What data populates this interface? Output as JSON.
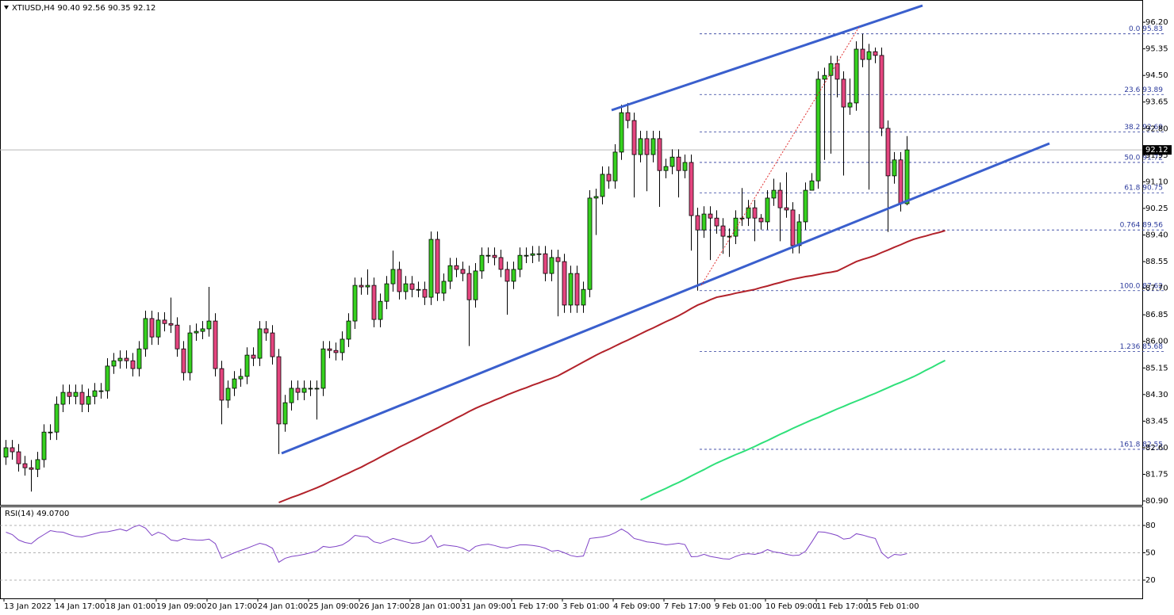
{
  "chart_data": {
    "type": "candlestick",
    "title": "XTIUSD,H4  90.40 92.56 90.35 92.12",
    "bull_color": "#36d11f",
    "bear_color": "#e4457f",
    "wick_color": "#000000",
    "categories": [
      "13 Jan 2022",
      null,
      null,
      null,
      null,
      null,
      null,
      null,
      "14 Jan 17:00",
      null,
      null,
      null,
      null,
      null,
      null,
      null,
      "18 Jan 01:00",
      null,
      null,
      null,
      null,
      null,
      null,
      null,
      "19 Jan 09:00",
      null,
      null,
      null,
      null,
      null,
      null,
      null,
      "20 Jan 17:00",
      null,
      null,
      null,
      null,
      null,
      null,
      null,
      "24 Jan 01:00",
      null,
      null,
      null,
      null,
      null,
      null,
      null,
      "25 Jan 09:00",
      null,
      null,
      null,
      null,
      null,
      null,
      null,
      "26 Jan 17:00",
      null,
      null,
      null,
      null,
      null,
      null,
      null,
      "28 Jan 01:00",
      null,
      null,
      null,
      null,
      null,
      null,
      null,
      "31 Jan 09:00",
      null,
      null,
      null,
      null,
      null,
      null,
      null,
      "1 Feb 17:00",
      null,
      null,
      null,
      null,
      null,
      null,
      null,
      "3 Feb 01:00",
      null,
      null,
      null,
      null,
      null,
      null,
      null,
      "4 Feb 09:00",
      null,
      null,
      null,
      null,
      null,
      null,
      null,
      "7 Feb 17:00",
      null,
      null,
      null,
      null,
      null,
      null,
      null,
      "9 Feb 01:00",
      null,
      null,
      null,
      null,
      null,
      null,
      null,
      "10 Feb 09:00",
      null,
      null,
      null,
      null,
      null,
      null,
      null,
      "11 Feb 17:00",
      null,
      null,
      null,
      null,
      null,
      null,
      null,
      "15 Feb 01:00",
      null,
      null,
      null,
      null,
      null,
      null,
      null,
      null,
      null,
      null,
      null,
      null
    ],
    "open": [
      82.3,
      82.6,
      82.47,
      82.09,
      81.96,
      81.91,
      82.22,
      83.1,
      83.1,
      83.99,
      84.37,
      84.24,
      84.37,
      83.99,
      84.24,
      84.42,
      84.42,
      85.21,
      85.38,
      85.46,
      85.38,
      85.13,
      85.76,
      86.73,
      86.14,
      86.68,
      86.57,
      86.52,
      85.76,
      85.0,
      86.27,
      86.32,
      86.4,
      86.65,
      85.13,
      84.12,
      84.5,
      84.8,
      84.88,
      85.56,
      85.46,
      86.4,
      86.27,
      85.51,
      83.36,
      84.04,
      84.5,
      84.37,
      84.5,
      84.5,
      84.5,
      85.76,
      85.71,
      85.64,
      86.07,
      86.65,
      87.79,
      87.74,
      87.79,
      86.7,
      87.28,
      87.84,
      88.3,
      87.59,
      87.84,
      87.66,
      87.66,
      87.41,
      89.26,
      87.54,
      87.92,
      88.42,
      88.3,
      88.17,
      87.33,
      88.25,
      88.75,
      88.75,
      88.68,
      88.3,
      87.92,
      88.3,
      88.75,
      88.75,
      88.8,
      88.8,
      88.17,
      88.68,
      88.55,
      87.16,
      88.17,
      87.16,
      87.66,
      90.58,
      90.63,
      91.34,
      91.13,
      92.05,
      93.31,
      93.06,
      91.97,
      92.48,
      91.97,
      92.48,
      91.46,
      91.59,
      91.89,
      91.46,
      91.72,
      90.02,
      89.56,
      90.07,
      89.94,
      89.69,
      89.36,
      89.36,
      89.94,
      89.94,
      90.27,
      89.94,
      89.82,
      90.58,
      90.83,
      90.27,
      90.2,
      89.06,
      89.82,
      90.83,
      91.13,
      94.38,
      94.5,
      94.88,
      94.38,
      93.49,
      93.62,
      95.34,
      95.01,
      95.26,
      95.14,
      92.81,
      91.29,
      91.8,
      90.4,
      null,
      null,
      null,
      null,
      null,
      null
    ],
    "high": [
      82.85,
      82.85,
      82.72,
      82.34,
      82.21,
      82.47,
      83.35,
      83.35,
      84.24,
      84.62,
      84.62,
      84.62,
      84.62,
      84.49,
      84.67,
      84.67,
      85.46,
      85.63,
      85.71,
      85.71,
      85.63,
      86.01,
      86.98,
      86.98,
      86.93,
      86.93,
      87.4,
      86.77,
      86.01,
      86.52,
      86.57,
      86.65,
      87.74,
      86.9,
      85.38,
      84.75,
      85.05,
      85.13,
      85.81,
      85.81,
      86.65,
      86.65,
      86.52,
      85.76,
      84.29,
      84.75,
      84.75,
      84.75,
      84.75,
      84.75,
      86.01,
      86.01,
      85.96,
      86.32,
      86.9,
      88.04,
      88.04,
      88.3,
      88.04,
      87.53,
      88.09,
      88.9,
      88.55,
      88.09,
      88.09,
      87.91,
      87.91,
      89.51,
      89.51,
      88.17,
      88.67,
      88.67,
      88.55,
      88.42,
      88.5,
      89.0,
      89.0,
      89.0,
      88.93,
      88.55,
      88.55,
      89.0,
      89.0,
      89.05,
      89.05,
      89.05,
      88.93,
      88.93,
      88.8,
      88.42,
      88.42,
      87.91,
      90.83,
      90.88,
      91.59,
      91.59,
      92.3,
      93.56,
      93.62,
      93.31,
      92.73,
      92.73,
      92.73,
      92.73,
      91.84,
      92.14,
      92.14,
      91.97,
      91.97,
      90.27,
      90.32,
      90.32,
      90.19,
      89.94,
      89.61,
      90.19,
      90.9,
      90.52,
      90.52,
      90.07,
      90.83,
      91.2,
      91.08,
      91.4,
      90.45,
      90.07,
      91.08,
      91.38,
      94.63,
      94.75,
      95.13,
      95.13,
      94.63,
      94.4,
      95.59,
      95.83,
      95.51,
      95.39,
      95.39,
      93.06,
      92.05,
      92.05,
      92.56,
      null,
      null,
      null,
      null,
      null,
      null
    ],
    "low": [
      82.05,
      82.22,
      81.84,
      81.71,
      81.2,
      81.66,
      81.97,
      82.85,
      82.85,
      83.74,
      83.99,
      83.99,
      83.74,
      83.74,
      83.99,
      84.17,
      84.17,
      84.96,
      85.13,
      85.13,
      84.88,
      84.88,
      85.51,
      85.89,
      85.89,
      86.32,
      86.27,
      85.51,
      84.75,
      84.75,
      86.02,
      86.07,
      86.15,
      84.88,
      83.35,
      83.87,
      84.25,
      84.55,
      84.63,
      85.21,
      85.21,
      86.02,
      85.26,
      82.4,
      83.11,
      83.79,
      84.12,
      84.12,
      84.25,
      83.5,
      84.25,
      85.46,
      85.39,
      85.39,
      85.82,
      86.4,
      87.49,
      87.49,
      86.45,
      86.45,
      87.03,
      87.59,
      87.34,
      87.34,
      87.41,
      87.41,
      87.16,
      87.16,
      87.29,
      87.29,
      87.67,
      88.05,
      87.92,
      85.85,
      87.08,
      88.0,
      88.5,
      88.43,
      88.05,
      86.85,
      87.67,
      88.05,
      88.5,
      88.5,
      88.55,
      87.92,
      87.92,
      86.8,
      86.91,
      86.91,
      86.91,
      86.91,
      87.41,
      89.4,
      90.38,
      90.88,
      90.88,
      91.8,
      92.81,
      90.6,
      91.72,
      90.8,
      91.72,
      90.3,
      91.21,
      91.34,
      90.6,
      91.21,
      88.9,
      87.62,
      89.31,
      88.6,
      89.44,
      88.8,
      88.7,
      89.11,
      89.69,
      89.69,
      89.2,
      89.57,
      89.57,
      90.33,
      89.2,
      89.95,
      88.81,
      88.81,
      89.57,
      90.88,
      90.88,
      91.8,
      92.0,
      93.8,
      91.3,
      93.24,
      93.37,
      94.76,
      90.85,
      94.89,
      92.56,
      89.5,
      91.04,
      90.15,
      90.35,
      null,
      null,
      null,
      null,
      null,
      null
    ],
    "close": [
      82.6,
      82.47,
      82.09,
      81.96,
      81.91,
      82.22,
      83.1,
      83.1,
      83.99,
      84.37,
      84.24,
      84.37,
      83.99,
      84.24,
      84.42,
      84.42,
      85.21,
      85.38,
      85.46,
      85.38,
      85.13,
      85.76,
      86.73,
      86.14,
      86.68,
      86.57,
      86.52,
      85.76,
      85.0,
      86.27,
      86.32,
      86.4,
      86.65,
      85.13,
      84.12,
      84.5,
      84.8,
      84.88,
      85.56,
      85.46,
      86.4,
      86.27,
      85.51,
      83.36,
      84.04,
      84.5,
      84.37,
      84.5,
      84.5,
      84.5,
      85.76,
      85.71,
      85.64,
      86.07,
      86.65,
      87.79,
      87.74,
      87.79,
      86.7,
      87.28,
      87.84,
      88.3,
      87.59,
      87.84,
      87.66,
      87.66,
      87.41,
      89.26,
      87.54,
      87.92,
      88.42,
      88.3,
      88.17,
      87.33,
      88.25,
      88.75,
      88.75,
      88.68,
      88.3,
      87.92,
      88.3,
      88.75,
      88.75,
      88.8,
      88.8,
      88.17,
      88.68,
      88.55,
      87.16,
      88.17,
      87.16,
      87.66,
      90.58,
      90.63,
      91.34,
      91.13,
      92.05,
      93.31,
      93.06,
      91.97,
      92.48,
      91.97,
      92.48,
      91.46,
      91.59,
      91.89,
      91.46,
      91.72,
      90.02,
      89.56,
      90.07,
      89.94,
      89.69,
      89.36,
      89.36,
      89.94,
      89.94,
      90.27,
      89.94,
      89.82,
      90.58,
      90.83,
      90.27,
      90.2,
      89.06,
      89.82,
      90.83,
      91.13,
      94.38,
      94.5,
      94.88,
      94.38,
      93.49,
      93.62,
      95.34,
      95.01,
      95.26,
      95.14,
      92.81,
      91.29,
      91.8,
      90.4,
      92.12,
      null,
      null,
      null,
      null,
      null,
      null
    ],
    "moving_averages": [
      {
        "color": "#b2222a",
        "values": [
          null,
          null,
          null,
          null,
          null,
          null,
          null,
          null,
          null,
          null,
          null,
          null,
          null,
          null,
          null,
          null,
          null,
          null,
          null,
          null,
          null,
          null,
          null,
          null,
          null,
          null,
          null,
          null,
          null,
          null,
          null,
          null,
          null,
          null,
          null,
          null,
          null,
          null,
          null,
          null,
          null,
          null,
          null,
          80.85,
          80.93,
          81.01,
          81.08,
          81.16,
          81.24,
          81.32,
          81.41,
          81.51,
          81.6,
          81.7,
          81.79,
          81.89,
          81.98,
          82.09,
          82.19,
          82.3,
          82.41,
          82.51,
          82.62,
          82.72,
          82.82,
          82.92,
          83.03,
          83.13,
          83.23,
          83.34,
          83.44,
          83.55,
          83.65,
          83.76,
          83.86,
          83.95,
          84.03,
          84.12,
          84.2,
          84.29,
          84.37,
          84.45,
          84.52,
          84.6,
          84.67,
          84.75,
          84.82,
          84.9,
          85.01,
          85.12,
          85.23,
          85.34,
          85.45,
          85.56,
          85.66,
          85.75,
          85.85,
          85.95,
          86.04,
          86.14,
          86.24,
          86.34,
          86.43,
          86.53,
          86.63,
          86.72,
          86.82,
          86.93,
          87.05,
          87.16,
          87.24,
          87.33,
          87.41,
          87.45,
          87.49,
          87.54,
          87.58,
          87.62,
          87.66,
          87.72,
          87.77,
          87.83,
          87.88,
          87.94,
          87.99,
          88.03,
          88.07,
          88.1,
          88.14,
          88.18,
          88.21,
          88.25,
          88.35,
          88.45,
          88.55,
          88.62,
          88.68,
          88.75,
          88.84,
          88.92,
          89.01,
          89.09,
          89.18,
          89.26,
          89.32,
          89.37,
          89.43,
          89.48,
          89.54
        ]
      },
      {
        "color": "#2fe07a",
        "values": [
          null,
          null,
          null,
          null,
          null,
          null,
          null,
          null,
          null,
          null,
          null,
          null,
          null,
          null,
          null,
          null,
          null,
          null,
          null,
          null,
          null,
          null,
          null,
          null,
          null,
          null,
          null,
          null,
          null,
          null,
          null,
          null,
          null,
          null,
          null,
          null,
          null,
          null,
          null,
          null,
          null,
          null,
          null,
          null,
          null,
          null,
          null,
          null,
          null,
          null,
          null,
          null,
          null,
          null,
          null,
          null,
          null,
          null,
          null,
          null,
          null,
          null,
          null,
          null,
          null,
          null,
          null,
          null,
          null,
          null,
          null,
          null,
          null,
          null,
          null,
          null,
          null,
          null,
          null,
          null,
          null,
          null,
          null,
          null,
          null,
          null,
          null,
          null,
          null,
          null,
          null,
          null,
          null,
          null,
          null,
          null,
          null,
          null,
          null,
          null,
          80.93,
          81.02,
          81.12,
          81.21,
          81.3,
          81.4,
          81.49,
          81.59,
          81.7,
          81.8,
          81.9,
          82.01,
          82.11,
          82.2,
          82.29,
          82.38,
          82.46,
          82.55,
          82.64,
          82.74,
          82.83,
          82.93,
          83.03,
          83.12,
          83.22,
          83.31,
          83.4,
          83.49,
          83.57,
          83.66,
          83.75,
          83.84,
          83.92,
          84.01,
          84.09,
          84.17,
          84.26,
          84.34,
          84.43,
          84.52,
          84.61,
          84.69,
          84.78,
          84.87,
          84.97,
          85.08,
          85.18,
          85.29,
          85.39
        ]
      }
    ],
    "ylim": [
      80.8,
      96.81
    ],
    "yticks": [
      {
        "value": 96.2,
        "label": "96.20"
      },
      {
        "value": 95.35,
        "label": "95.35"
      },
      {
        "value": 94.5,
        "label": "94.50"
      },
      {
        "value": 93.65,
        "label": "93.65"
      },
      {
        "value": 92.8,
        "label": "92.80"
      },
      {
        "value": 91.95,
        "label": "91.95"
      },
      {
        "value": 91.1,
        "label": "91.10"
      },
      {
        "value": 90.25,
        "label": "90.25"
      },
      {
        "value": 89.4,
        "label": "89.40"
      },
      {
        "value": 88.55,
        "label": "88.55"
      },
      {
        "value": 87.7,
        "label": "87.70"
      },
      {
        "value": 86.85,
        "label": "86.85"
      },
      {
        "value": 86.0,
        "label": "86.00"
      },
      {
        "value": 85.15,
        "label": "85.15"
      },
      {
        "value": 84.3,
        "label": "84.30"
      },
      {
        "value": 83.45,
        "label": "83.45"
      },
      {
        "value": 82.6,
        "label": "82.60"
      },
      {
        "value": 81.75,
        "label": "81.75"
      },
      {
        "value": 80.9,
        "label": "80.90"
      }
    ],
    "last_price": 92.12,
    "fib_color": "#2b3a9c",
    "fib_levels": [
      {
        "value": 95.83,
        "label": "0.0 95.83"
      },
      {
        "value": 93.89,
        "label": "23.6 93.89"
      },
      {
        "value": 92.69,
        "label": "38.2 92.69"
      },
      {
        "value": 91.72,
        "label": "50.0 91.72"
      },
      {
        "value": 90.75,
        "label": "61.8 90.75"
      },
      {
        "value": 89.56,
        "label": "0.764 89.56"
      },
      {
        "value": 87.62,
        "label": "100.0 87.62"
      },
      {
        "value": 85.68,
        "label": "1.236 85.68"
      },
      {
        "value": 82.55,
        "label": "161.8 82.55"
      }
    ],
    "rsi": {
      "label": "RSI(14) 49.0700",
      "color": "#7f43c6",
      "ylim": [
        0,
        100
      ],
      "yticks": [
        20,
        50,
        80
      ],
      "values": [
        72.6,
        70,
        64,
        61.3,
        60,
        65.7,
        70,
        74.3,
        73,
        72.6,
        70,
        68,
        67.4,
        69,
        71,
        72.6,
        73,
        74.5,
        76.1,
        74,
        78,
        80.4,
        77,
        69,
        72.6,
        70,
        64,
        63,
        65.7,
        64.5,
        64,
        63.9,
        65,
        60,
        44,
        47,
        50,
        52.6,
        55,
        57.8,
        60.4,
        58.7,
        55,
        39.6,
        44,
        46,
        47,
        48.3,
        50,
        52,
        57,
        56,
        57,
        58.7,
        63,
        69.1,
        68,
        67.4,
        62,
        60.4,
        63,
        65.7,
        63.9,
        62,
        60.4,
        61,
        63,
        69.1,
        56,
        58.7,
        57.8,
        57,
        55,
        51.7,
        57,
        58.7,
        59.5,
        58,
        56,
        55.2,
        57,
        58.7,
        58.7,
        58,
        57,
        55,
        51.7,
        52.6,
        50,
        47,
        45.7,
        46.5,
        65.7,
        66.5,
        67.4,
        69,
        72,
        76.1,
        72,
        65.7,
        64,
        62,
        61.3,
        60,
        58.7,
        59.5,
        60.4,
        59,
        45.7,
        46,
        48.3,
        46,
        44.8,
        43.5,
        43,
        46,
        48.3,
        49,
        48.3,
        50,
        53.5,
        51,
        50,
        48.3,
        47,
        47.5,
        51.7,
        62,
        73,
        72.6,
        71,
        69,
        65,
        66,
        70.9,
        69.5,
        67.4,
        65.7,
        50,
        44,
        48.3,
        47.5,
        49.07,
        null,
        null,
        null,
        null,
        null,
        null
      ]
    }
  }
}
